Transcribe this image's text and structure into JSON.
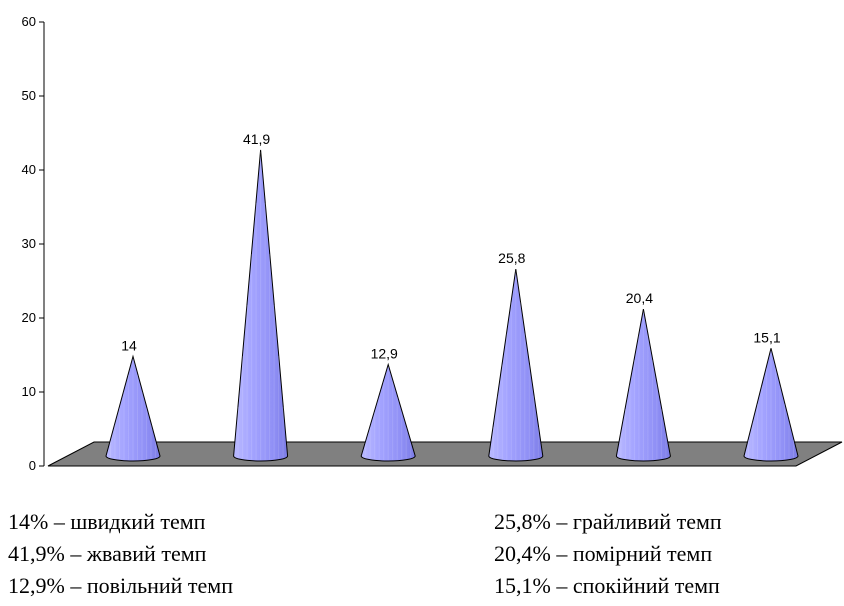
{
  "chart_data": {
    "type": "bar",
    "bar_shape": "cone",
    "bar_color": "#9999ff",
    "floor_color": "#808080",
    "categories": [
      "швидкий темп",
      "жвавий темп",
      "повільний темп",
      "грайливий темп",
      "помірний темп",
      "спокійний темп"
    ],
    "values": [
      14,
      41.9,
      12.9,
      25.8,
      20.4,
      15.1
    ],
    "data_labels": [
      "14",
      "41,9",
      "12,9",
      "25,8",
      "20,4",
      "15,1"
    ],
    "ylim": [
      0,
      60
    ],
    "y_ticks": [
      "0",
      "10",
      "20",
      "30",
      "40",
      "50",
      "60"
    ],
    "title": "",
    "xlabel": "",
    "ylabel": ""
  },
  "legend": {
    "left": [
      "14% – швидкий темп",
      "41,9% – жвавий темп",
      "12,9% – повільний темп"
    ],
    "right": [
      "25,8% – грайливий темп",
      "20,4% – помірний темп",
      "15,1% – спокійний темп"
    ]
  }
}
